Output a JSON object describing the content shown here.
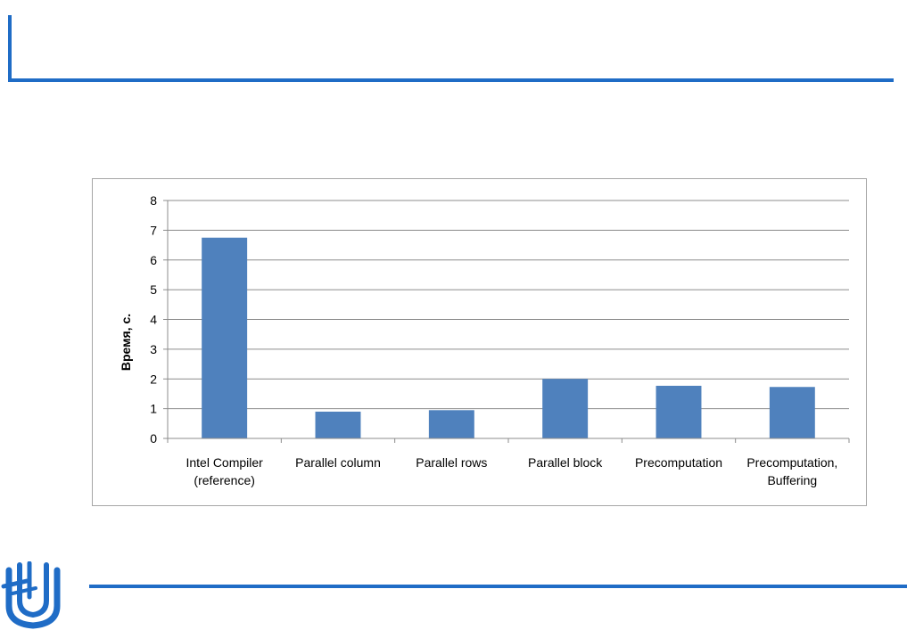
{
  "slide": {
    "accent_color": "#1f6cc6",
    "logo_icon": "university-logo-icon"
  },
  "chart_data": {
    "type": "bar",
    "title": "",
    "xlabel": "",
    "ylabel": "Время, с.",
    "ylim": [
      0,
      8
    ],
    "yticks": [
      0,
      1,
      2,
      3,
      4,
      5,
      6,
      7,
      8
    ],
    "grid": true,
    "legend": "none",
    "bar_color": "#4f81bd",
    "categories": [
      [
        "Intel Compiler",
        "(reference)"
      ],
      [
        "Parallel column"
      ],
      [
        "Parallel rows"
      ],
      [
        "Parallel block"
      ],
      [
        "Precomputation"
      ],
      [
        "Precomputation,",
        "Buffering"
      ]
    ],
    "values": [
      6.75,
      0.9,
      0.95,
      2.0,
      1.77,
      1.73
    ]
  }
}
